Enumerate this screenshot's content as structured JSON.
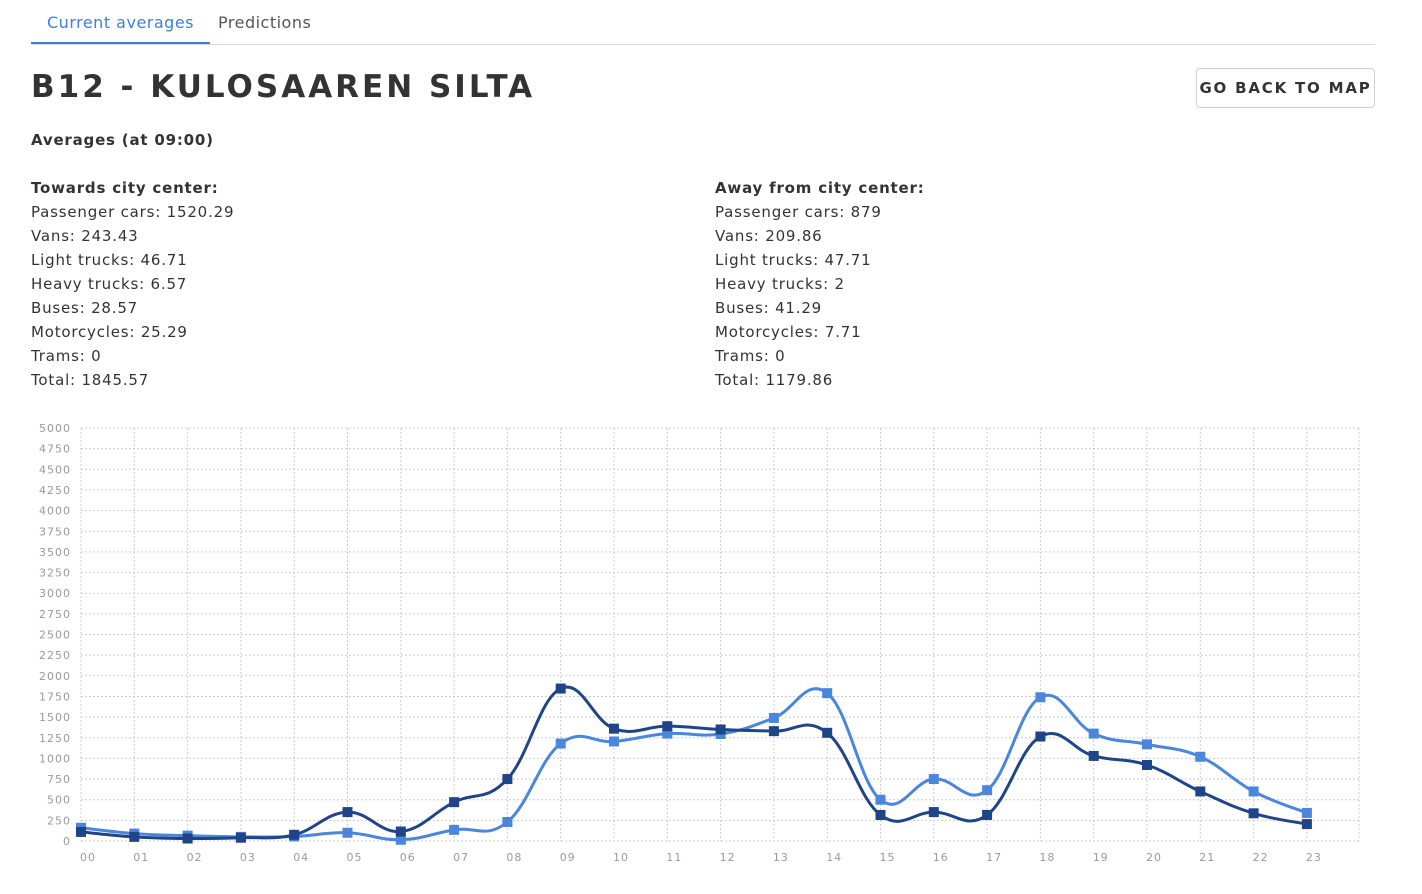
{
  "tabs": [
    {
      "label": "Current averages",
      "active": true
    },
    {
      "label": "Predictions",
      "active": false
    }
  ],
  "title": "B12 - KULOSAAREN SILTA",
  "back_button": "GO BACK TO MAP",
  "averages_title": "Averages (at 09:00)",
  "towards": {
    "heading": "Towards city center:",
    "lines": [
      "Passenger cars: 1520.29",
      "Vans: 243.43",
      "Light trucks: 46.71",
      "Heavy trucks: 6.57",
      "Buses: 28.57",
      "Motorcycles: 25.29",
      "Trams: 0",
      "Total: 1845.57"
    ]
  },
  "away": {
    "heading": "Away from city center:",
    "lines": [
      "Passenger cars: 879",
      "Vans: 209.86",
      "Light trucks: 47.71",
      "Heavy trucks: 2",
      "Buses: 41.29",
      "Motorcycles: 7.71",
      "Trams: 0",
      "Total: 1179.86"
    ]
  },
  "colors": {
    "accent": "#3d7fdb",
    "series_dark": "#1f4588",
    "series_light": "#4a86dc",
    "grid": "#cccccc"
  },
  "chart_data": {
    "type": "line",
    "x": [
      "00",
      "01",
      "02",
      "03",
      "04",
      "05",
      "06",
      "07",
      "08",
      "09",
      "10",
      "11",
      "12",
      "13",
      "14",
      "15",
      "16",
      "17",
      "18",
      "19",
      "20",
      "21",
      "22",
      "23"
    ],
    "ylim": [
      0,
      5000
    ],
    "yticks": [
      0,
      250,
      500,
      750,
      1000,
      1250,
      1500,
      1750,
      2000,
      2250,
      2500,
      2750,
      3000,
      3250,
      3500,
      3750,
      4000,
      4250,
      4500,
      4750,
      5000
    ],
    "grid": true,
    "series": [
      {
        "color": "#1f4588",
        "values": [
          110,
          50,
          30,
          40,
          75,
          350,
          115,
          470,
          750,
          1845.57,
          1360,
          1390,
          1350,
          1330,
          1310,
          315,
          350,
          315,
          1265,
          1030,
          920,
          600,
          335,
          205
        ]
      },
      {
        "color": "#4a86dc",
        "values": [
          160,
          90,
          65,
          50,
          55,
          100,
          15,
          135,
          230,
          1179.86,
          1205,
          1300,
          1295,
          1490,
          1790,
          500,
          750,
          615,
          1740,
          1300,
          1170,
          1020,
          600,
          340
        ]
      }
    ]
  }
}
